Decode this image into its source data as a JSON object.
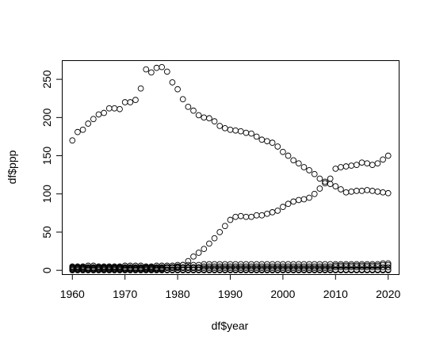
{
  "chart_data": {
    "type": "scatter",
    "title": "",
    "xlabel": "df$year",
    "ylabel": "df$ppp",
    "xlim": [
      1958,
      2022
    ],
    "ylim": [
      -5,
      275
    ],
    "xticks": [
      1960,
      1970,
      1980,
      1990,
      2000,
      2010,
      2020
    ],
    "yticks": [
      0,
      50,
      100,
      150,
      200,
      250
    ],
    "xtick_labels": [
      "1960",
      "1970",
      "1980",
      "1990",
      "2000",
      "2010",
      "2020"
    ],
    "ytick_labels": [
      "0",
      "50",
      "100",
      "150",
      "200",
      "250"
    ],
    "grid": false,
    "marker": "open-circle",
    "colors": {
      "points": "#000000",
      "background": "#ffffff",
      "axes": "#000000"
    },
    "series": [
      {
        "x": [
          1960,
          1961,
          1962,
          1963,
          1964,
          1965,
          1966,
          1967,
          1968,
          1969,
          1970,
          1971,
          1972,
          1973,
          1974,
          1975,
          1976,
          1977,
          1978,
          1979,
          1980,
          1981,
          1982,
          1983,
          1984,
          1985,
          1986,
          1987,
          1988,
          1989,
          1990,
          1991,
          1992,
          1993,
          1994,
          1995,
          1996,
          1997,
          1998,
          1999,
          2000,
          2001,
          2002,
          2003,
          2004,
          2005,
          2006,
          2007,
          2008,
          2009,
          2010,
          2011,
          2012,
          2013,
          2014,
          2015,
          2016,
          2017,
          2018,
          2019,
          2020
        ],
        "y": [
          170,
          181,
          184,
          192,
          198,
          204,
          206,
          212,
          212,
          211,
          220,
          220,
          223,
          238,
          263,
          259,
          265,
          266,
          260,
          246,
          237,
          224,
          214,
          209,
          203,
          200,
          199,
          195,
          189,
          186,
          184,
          183,
          182,
          180,
          179,
          175,
          171,
          169,
          167,
          162,
          155,
          150,
          144,
          140,
          135,
          131,
          126,
          120,
          116,
          113,
          110,
          106,
          102,
          103,
          104,
          104,
          105,
          104,
          103,
          102,
          101
        ]
      },
      {
        "x": [
          1960,
          1961,
          1962,
          1963,
          1964,
          1965,
          1966,
          1967,
          1968,
          1969,
          1970,
          1971,
          1972,
          1973,
          1974,
          1975,
          1976,
          1977,
          1978,
          1979,
          1980,
          1981,
          1982,
          1983,
          1984,
          1985,
          1986,
          1987,
          1988,
          1989,
          1990,
          1991,
          1992,
          1993,
          1994,
          1995,
          1996,
          1997,
          1998,
          1999,
          2000,
          2001,
          2002,
          2003,
          2004,
          2005,
          2006,
          2007,
          2008,
          2009,
          2010,
          2011,
          2012,
          2013,
          2014,
          2015,
          2016,
          2017,
          2018,
          2019,
          2020
        ],
        "y": [
          3,
          3,
          3,
          3,
          3,
          3,
          3,
          3,
          3,
          3,
          3,
          3,
          3,
          3,
          3,
          3,
          3,
          3,
          4,
          4,
          5,
          7,
          12,
          18,
          23,
          28,
          35,
          42,
          50,
          58,
          66,
          70,
          71,
          70,
          70,
          72,
          72,
          74,
          76,
          78,
          83,
          87,
          90,
          92,
          93,
          95,
          100,
          107,
          114,
          120,
          133,
          135,
          136,
          137,
          138,
          141,
          140,
          138,
          140,
          145,
          150
        ]
      },
      {
        "x": [
          1960,
          1961,
          1962,
          1963,
          1964,
          1965,
          1966,
          1967,
          1968,
          1969,
          1970,
          1971,
          1972,
          1973,
          1974,
          1975,
          1976,
          1977,
          1978,
          1979,
          1980,
          1981,
          1982,
          1983,
          1984,
          1985,
          1986,
          1987,
          1988,
          1989,
          1990,
          1991,
          1992,
          1993,
          1994,
          1995,
          1996,
          1997,
          1998,
          1999,
          2000,
          2001,
          2002,
          2003,
          2004,
          2005,
          2006,
          2007,
          2008,
          2009,
          2010,
          2011,
          2012,
          2013,
          2014,
          2015,
          2016,
          2017,
          2018,
          2019,
          2020
        ],
        "y": [
          5,
          5,
          5,
          6,
          6,
          5,
          5,
          5,
          5,
          5,
          6,
          6,
          6,
          6,
          5,
          5,
          6,
          6,
          6,
          6,
          7,
          7,
          7,
          7,
          7,
          8,
          8,
          8,
          8,
          8,
          8,
          8,
          8,
          8,
          8,
          8,
          8,
          8,
          8,
          8,
          8,
          8,
          8,
          8,
          8,
          8,
          8,
          8,
          8,
          8,
          8,
          8,
          8,
          8,
          8,
          8,
          8,
          8,
          8,
          9,
          9
        ]
      },
      {
        "x": [
          1960,
          1961,
          1962,
          1963,
          1964,
          1965,
          1966,
          1967,
          1968,
          1969,
          1970,
          1971,
          1972,
          1973,
          1974,
          1975,
          1976,
          1977,
          1978,
          1979,
          1980,
          1981,
          1982,
          1983,
          1984,
          1985,
          1986,
          1987,
          1988,
          1989,
          1990,
          1991,
          1992,
          1993,
          1994,
          1995,
          1996,
          1997,
          1998,
          1999,
          2000,
          2001,
          2002,
          2003,
          2004,
          2005,
          2006,
          2007,
          2008,
          2009,
          2010,
          2011,
          2012,
          2013,
          2014,
          2015,
          2016,
          2017,
          2018,
          2019,
          2020
        ],
        "y": [
          2,
          2,
          2,
          2,
          2,
          2,
          2,
          2,
          2,
          2,
          2,
          2,
          2,
          2,
          2,
          2,
          2,
          2,
          3,
          3,
          3,
          3,
          3,
          3,
          3,
          3,
          3,
          3,
          3,
          3,
          3,
          3,
          3,
          3,
          3,
          3,
          3,
          3,
          3,
          3,
          3,
          3,
          3,
          3,
          3,
          3,
          3,
          3,
          3,
          3,
          4,
          4,
          4,
          4,
          4,
          4,
          4,
          4,
          4,
          4,
          4
        ]
      },
      {
        "x": [
          1960,
          1961,
          1962,
          1963,
          1964,
          1965,
          1966,
          1967,
          1968,
          1969,
          1970,
          1971,
          1972,
          1973,
          1974,
          1975,
          1976,
          1977,
          1978,
          1979,
          1980,
          1981,
          1982,
          1983,
          1984,
          1985,
          1986,
          1987,
          1988,
          1989,
          1990,
          1991,
          1992,
          1993,
          1994,
          1995,
          1996,
          1997,
          1998,
          1999,
          2000,
          2001,
          2002,
          2003,
          2004,
          2005,
          2006,
          2007,
          2008,
          2009,
          2010,
          2011,
          2012,
          2013,
          2014,
          2015,
          2016,
          2017,
          2018,
          2019,
          2020
        ],
        "y": [
          0,
          0,
          0,
          0,
          0,
          0,
          0,
          0,
          0,
          0,
          0,
          0,
          0,
          0,
          0,
          0,
          0,
          0,
          0,
          0,
          0,
          0,
          0,
          0,
          0,
          0,
          0,
          0,
          0,
          0,
          0,
          0,
          0,
          0,
          0,
          0,
          0,
          0,
          0,
          0,
          0,
          0,
          0,
          0,
          0,
          0,
          0,
          0,
          0,
          0,
          0,
          0,
          0,
          0,
          0,
          0,
          0,
          0,
          0,
          0,
          0
        ]
      },
      {
        "x": [
          1960,
          1961,
          1962,
          1963,
          1964,
          1965,
          1966,
          1967,
          1968,
          1969,
          1970,
          1971,
          1972,
          1973,
          1974,
          1975,
          1976,
          1977,
          1978,
          1979,
          1980,
          1981,
          1982,
          1983,
          1984,
          1985,
          1986,
          1987,
          1988,
          1989,
          1990,
          1991,
          1992,
          1993,
          1994,
          1995,
          1996,
          1997,
          1998,
          1999,
          2000,
          2001,
          2002,
          2003,
          2004,
          2005,
          2006,
          2007,
          2008,
          2009,
          2010,
          2011,
          2012,
          2013,
          2014,
          2015,
          2016,
          2017,
          2018,
          2019,
          2020
        ],
        "y": [
          4,
          4,
          4,
          4,
          4,
          4,
          4,
          4,
          4,
          4,
          4,
          4,
          4,
          4,
          4,
          4,
          4,
          4,
          4,
          4,
          4,
          4,
          4,
          4,
          4,
          5,
          5,
          5,
          5,
          5,
          5,
          5,
          5,
          5,
          5,
          5,
          5,
          5,
          5,
          5,
          5,
          5,
          5,
          5,
          5,
          5,
          5,
          5,
          5,
          5,
          6,
          6,
          6,
          6,
          6,
          6,
          6,
          6,
          6,
          7,
          7
        ]
      },
      {
        "x": [
          1960,
          1961,
          1962,
          1963,
          1964,
          1965,
          1966,
          1967,
          1968,
          1969,
          1970,
          1971,
          1972,
          1973,
          1974,
          1975,
          1976,
          1977,
          1978,
          1979,
          1980,
          1981,
          1982,
          1983,
          1984,
          1985,
          1986,
          1987,
          1988,
          1989,
          1990,
          1991,
          1992,
          1993,
          1994,
          1995,
          1996,
          1997,
          1998,
          1999,
          2000,
          2001,
          2002,
          2003,
          2004,
          2005,
          2006,
          2007,
          2008,
          2009,
          2010,
          2011,
          2012,
          2013,
          2014,
          2015,
          2016,
          2017,
          2018,
          2019,
          2020
        ],
        "y": [
          1,
          1,
          1,
          1,
          1,
          1,
          1,
          1,
          1,
          1,
          1,
          1,
          1,
          1,
          1,
          1,
          1,
          1,
          1,
          1,
          1,
          1,
          1,
          1,
          1,
          1,
          1,
          1,
          1,
          1,
          1,
          1,
          1,
          1,
          1,
          1,
          1,
          1,
          1,
          1,
          1,
          1,
          1,
          1,
          1,
          1,
          1,
          1,
          1,
          1,
          1,
          1,
          1,
          1,
          1,
          1,
          1,
          1,
          1,
          1,
          1
        ]
      }
    ]
  }
}
